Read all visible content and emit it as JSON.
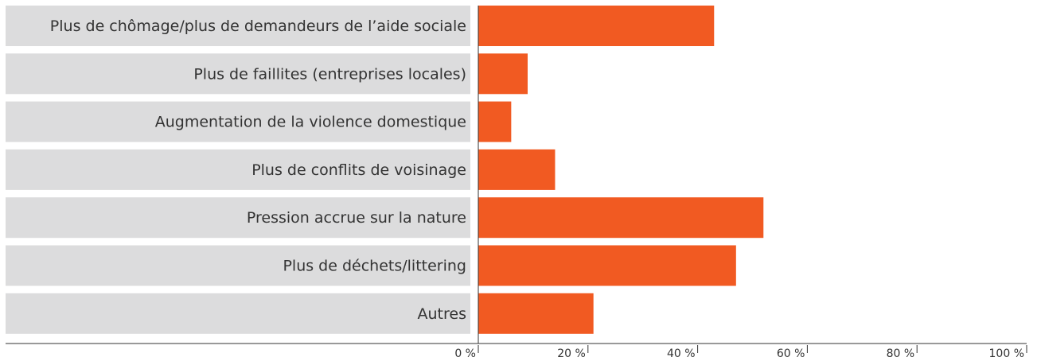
{
  "chart_data": {
    "type": "hbar",
    "categories": [
      "Plus de chômage/plus de demandeurs de l’aide sociale",
      "Plus de faillites (entreprises locales)",
      "Augmentation de la violence domestique",
      "Plus de conflits de voisinage",
      "Pression accrue sur la nature",
      "Plus de déchets/littering",
      "Autres"
    ],
    "values": [
      43,
      9,
      6,
      14,
      52,
      47,
      21
    ],
    "color": "#f15a22",
    "label_box_color": "#dcdcdd",
    "xlim": [
      0,
      100
    ],
    "xticks": [
      {
        "value": 0,
        "label": "0 %"
      },
      {
        "value": 20,
        "label": "20 %"
      },
      {
        "value": 40,
        "label": "40 %"
      },
      {
        "value": 60,
        "label": "60 %"
      },
      {
        "value": 80,
        "label": "80 %"
      },
      {
        "value": 100,
        "label": "100 %"
      }
    ]
  }
}
